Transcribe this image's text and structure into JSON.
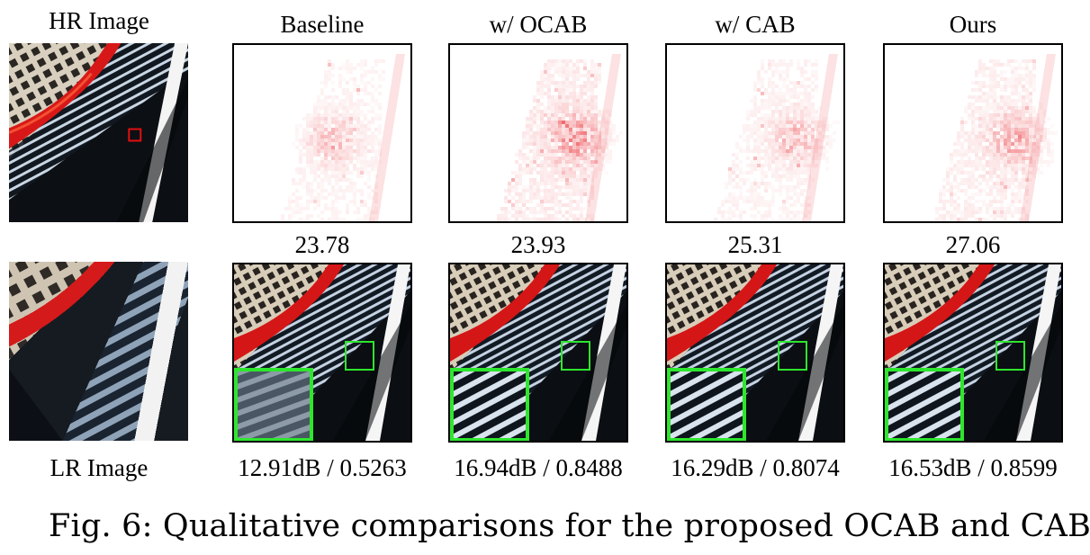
{
  "figure": {
    "hr_label": "HR Image",
    "lr_label": "LR Image",
    "columns": [
      {
        "title": "Baseline",
        "psnr_crop": "23.78",
        "metrics": "12.91dB / 0.5263"
      },
      {
        "title": "w/ OCAB",
        "psnr_crop": "23.93",
        "metrics": "16.94dB / 0.8488"
      },
      {
        "title": "w/ CAB",
        "psnr_crop": "25.31",
        "metrics": "16.29dB / 0.8074"
      },
      {
        "title": "Ours",
        "psnr_crop": "27.06",
        "metrics": "16.53dB / 0.8599"
      }
    ],
    "caption": "Fig. 6: Qualitative comparisons for the proposed OCAB and CAB.",
    "colors": {
      "heat": "#e8141c",
      "zoom_box": "#2ee62e",
      "red_marker": "#e01010",
      "stripe": "#d9e3ee"
    }
  }
}
